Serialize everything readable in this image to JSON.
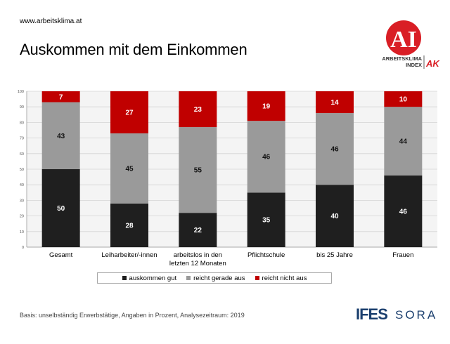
{
  "header": {
    "url": "www.arbeitsklima.at",
    "title": "Auskommen mit dem Einkommen"
  },
  "logo": {
    "letters": "AI",
    "line1": "ARBEITSKLIMA",
    "line2": "INDEX",
    "ak": "AK"
  },
  "colors": {
    "gut": "#1f1f1f",
    "gerade": "#9a9a9a",
    "nicht": "#c00000",
    "brand_red": "#d91e25",
    "ifes_blue": "#1b3f6e"
  },
  "chart_data": {
    "type": "bar",
    "stacked": true,
    "categories": [
      [
        "Gesamt"
      ],
      [
        "Leiharbeiter/-innen"
      ],
      [
        "arbeitslos in den",
        "letzten 12 Monaten"
      ],
      [
        "Pflichtschule"
      ],
      [
        "bis 25 Jahre"
      ],
      [
        "Frauen"
      ]
    ],
    "series": [
      {
        "name": "auskommen gut",
        "values": [
          50,
          28,
          22,
          35,
          40,
          46
        ]
      },
      {
        "name": "reicht gerade aus",
        "values": [
          43,
          45,
          55,
          46,
          46,
          44
        ]
      },
      {
        "name": "reicht nicht aus",
        "values": [
          7,
          27,
          23,
          19,
          14,
          10
        ]
      }
    ],
    "ylim": [
      0,
      100
    ],
    "yticks": [
      0,
      10,
      20,
      30,
      40,
      50,
      60,
      70,
      80,
      90,
      100
    ],
    "grid": true,
    "legend": "bottom"
  },
  "footer": {
    "note": "Basis: unselbständig Erwerbstätige, Angaben in Prozent, Analysezeitraum: 2019",
    "logo_left": "IFES",
    "logo_right": "SORA"
  }
}
